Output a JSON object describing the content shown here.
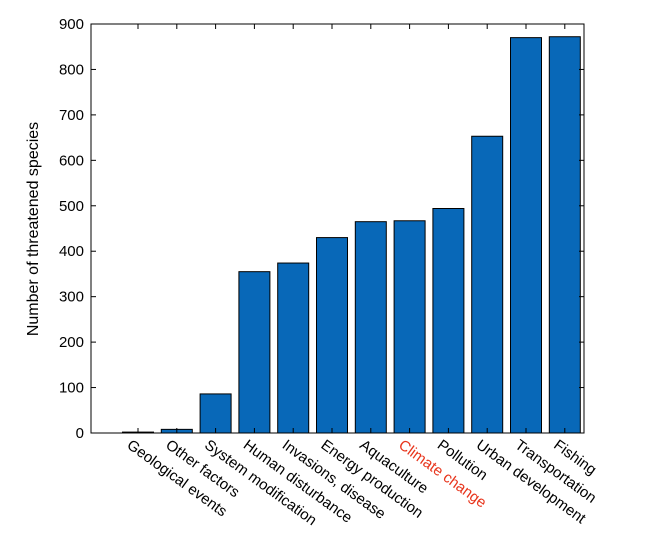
{
  "chart_data": {
    "type": "bar",
    "title": "",
    "xlabel": "",
    "ylabel": "Number of threatened species",
    "ylim": [
      0,
      900
    ],
    "yticks": [
      0,
      100,
      200,
      300,
      400,
      500,
      600,
      700,
      800,
      900
    ],
    "grid": false,
    "categories": [
      "Geological events",
      "Other factors",
      "System modification",
      "Human disturbance",
      "Invasions, disease",
      "Energy production",
      "Aquaculture",
      "Climate change",
      "Pollution",
      "Urban development",
      "Transportation",
      "Fishing"
    ],
    "values": [
      2,
      8,
      86,
      355,
      374,
      430,
      465,
      467,
      494,
      653,
      870,
      872
    ],
    "highlight_category": "Climate change",
    "colors": {
      "bar": "#0868b8",
      "bar_edge": "#000000",
      "axis": "#000000",
      "label": "#000000",
      "highlight_label": "#e8351c"
    }
  }
}
